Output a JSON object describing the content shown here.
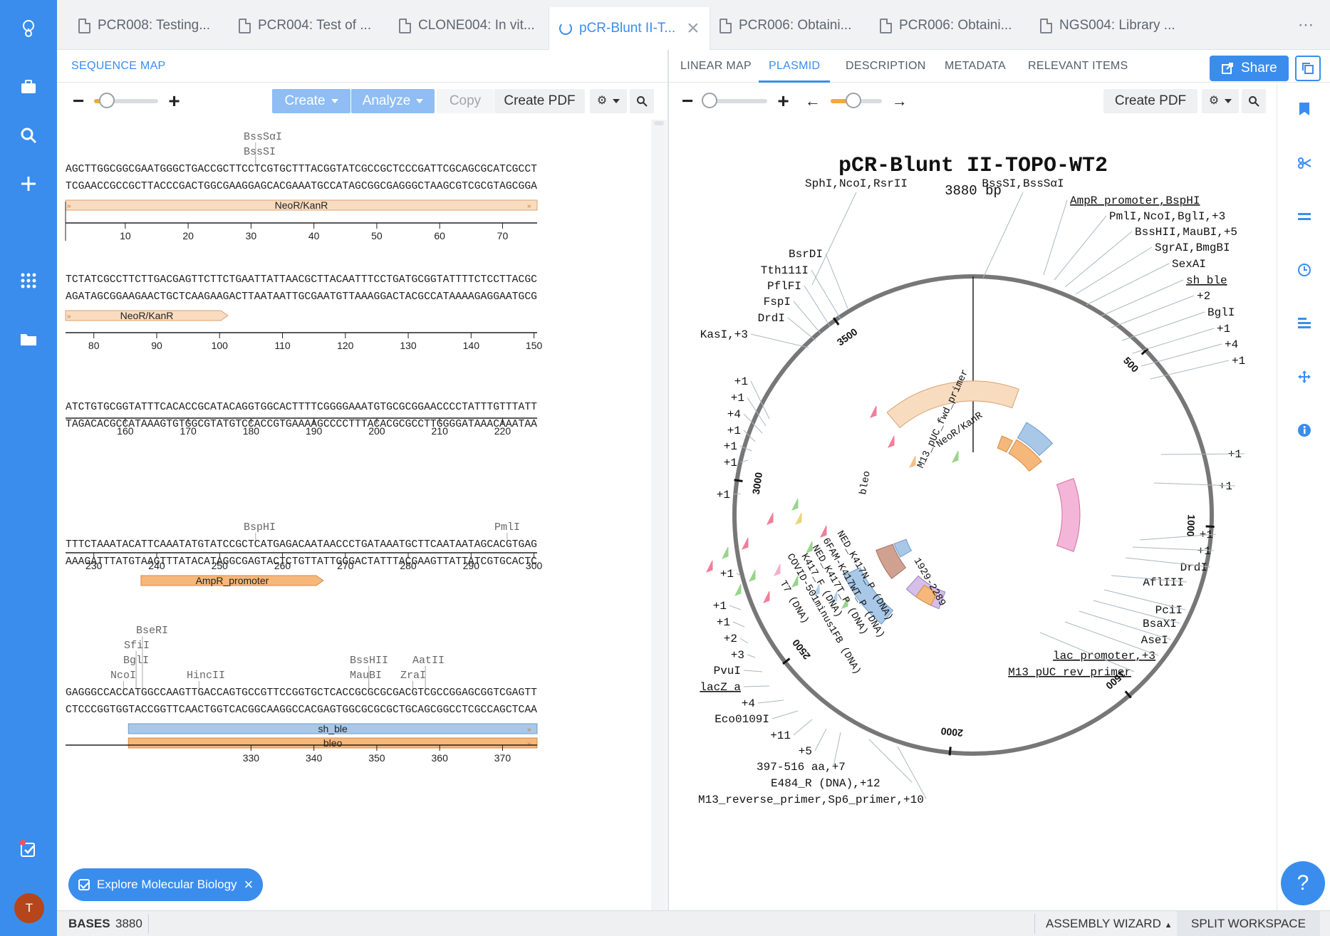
{
  "tabs": [
    {
      "label": "PCR008: Testing...",
      "active": false
    },
    {
      "label": "PCR004: Test of ...",
      "active": false
    },
    {
      "label": "CLONE004: In vit...",
      "active": false
    },
    {
      "label": "pCR-Blunt II-T...",
      "active": true
    },
    {
      "label": "PCR006: Obtaini...",
      "active": false
    },
    {
      "label": "PCR006: Obtaini...",
      "active": false
    },
    {
      "label": "NGS004: Library ...",
      "active": false
    }
  ],
  "left_panel": {
    "tab_label": "SEQUENCE MAP",
    "create_label": "Create",
    "analyze_label": "Analyze",
    "copy_label": "Copy",
    "pdf_label": "Create PDF",
    "zoom_level": 0.2
  },
  "right_panel": {
    "tabs": [
      "LINEAR MAP",
      "PLASMID",
      "DESCRIPTION",
      "METADATA",
      "RELEVANT ITEMS"
    ],
    "active_tab": "PLASMID",
    "share_label": "Share",
    "pdf_label": "Create PDF",
    "zoom_level": 0.1,
    "rotation_level": 0.45
  },
  "sequence_blocks": [
    {
      "enzymes": [
        {
          "name": "BssSαI",
          "row": 2
        },
        {
          "name": "BssSI",
          "row": 1
        }
      ],
      "top": "AGCTTGGCGGCGAATGGGCTGACCGCTTCCTCGTGCTTTACGGTATCGCCGCTCCCGATTCGCAGCGCATCGCCT",
      "bottom": "TCGAACCGCCGCTTACCCGACTGGCGAAGGAGCACGAAATGCCATAGCGGCGAGGGCTAAGCGTCGCGTAGCGGA",
      "features": [
        {
          "label": "NeoR/KanR",
          "color": "#f8dcc0",
          "stroke": "#e0a070",
          "kind": "full"
        }
      ],
      "ticks": [
        "10",
        "20",
        "30",
        "40",
        "50",
        "60",
        "70"
      ]
    },
    {
      "enzymes": [],
      "top": "TCTATCGCCTTCTTGACGAGTTCTTCTGAATTATTAACGCTTACAATTTCCTGATGCGGTATTTTCTCCTTACGC",
      "bottom": "AGATAGCGGAAGAACTGCTCAAGAAGACTTAATAATTGCGAATGTTAAAGGACTACGCCATAAAAGAGGAATGCG",
      "features": [
        {
          "label": "NeoR/KanR",
          "color": "#f8dcc0",
          "stroke": "#e0a070",
          "kind": "end"
        }
      ],
      "ticks": [
        "80",
        "90",
        "100",
        "110",
        "120",
        "130",
        "140",
        "150"
      ]
    },
    {
      "enzymes": [],
      "top": "ATCTGTGCGGTATTTCACACCGCATACAGGTGGCACTTTTCGGGGAAATGTGCGCGGAACCCCTATTTGTTTATT",
      "bottom": "TAGACACGCCATAAAGTGTGGCGTATGTCCACCGTGAAAAGCCCCTTTACACGCGCCTTGGGGATAAACAAATAA",
      "features": [],
      "ticks": [
        "160",
        "170",
        "180",
        "190",
        "200",
        "210",
        "220"
      ]
    },
    {
      "enzymes": [
        {
          "name": "BspHI",
          "row": 1
        },
        {
          "name": "PmlI",
          "row": 1
        }
      ],
      "top": "TTTCTAAATACATTCAAATATGTATCCGCTCATGAGACAATAACCCTGATAAATGCTTCAATAATAGCACGTGAG",
      "bottom": "AAAGATTTATGTAAGTTTATACATAGGCGAGTACTCTGTTATTGGGACTATTTACGAAGTTATTATCGTGCACTC",
      "features": [
        {
          "label": "AmpR_promoter",
          "color": "#f6b77a",
          "stroke": "#d98a40",
          "kind": "mid"
        }
      ],
      "ticks": [
        "230",
        "240",
        "250",
        "260",
        "270",
        "280",
        "290",
        "300"
      ]
    },
    {
      "enzymes": [
        {
          "name": "BseRI",
          "row": 4
        },
        {
          "name": "SfiI",
          "row": 3
        },
        {
          "name": "BglI",
          "row": 2
        },
        {
          "name": "NcoI",
          "row": 1
        },
        {
          "name": "HincII",
          "row": 1
        },
        {
          "name": "BssHII",
          "row": 2
        },
        {
          "name": "MauBI",
          "row": 1
        },
        {
          "name": "AatII",
          "row": 2
        },
        {
          "name": "ZraI",
          "row": 1
        }
      ],
      "top": "GAGGGCCACCATGGCCAAGTTGACCAGTGCCGTTCCGGTGCTCACCGCGCGCGACGTCGCCGGAGCGGTCGAGTT",
      "bottom": "CTCCCGGTGGTACCGGTTCAACTGGTCACGGCAAGGCCACGAGTGGCGCGCGCTGCAGCGGCCTCGCCAGCTCAA",
      "features": [
        {
          "label": "sh_ble",
          "color": "#a9c8e8",
          "stroke": "#6f9cc8",
          "kind": "start"
        },
        {
          "label": "bleo",
          "color": "#f6b77a",
          "stroke": "#d98a40",
          "kind": "start"
        }
      ],
      "ticks": [
        "330",
        "340",
        "350",
        "360",
        "370"
      ]
    }
  ],
  "plasmid": {
    "name": "pCR-Blunt II-TOPO-WT2",
    "length_label": "3880 bp",
    "total_bp": 3880,
    "ring_ticks": [
      "500",
      "1000",
      "1500",
      "2000",
      "2500",
      "3000",
      "3500"
    ],
    "ring_tick_bp": [
      500,
      1000,
      1500,
      2000,
      2500,
      3000,
      3500
    ],
    "feature_labels": [
      "NeoR/KanR",
      "M13_pUC_fwd_primer",
      "bleo",
      "1929-2289",
      "NED_K417N_P (DNA)",
      "6FAM-K417WT_P (DNA)",
      "NED_K417T_P (DNA)",
      "K417_F (DNA)",
      "COVID-501minus1FB (DNA)",
      "T7 (DNA)"
    ],
    "top_labels": [
      "SphI,NcoI,RsrII",
      "BssSI,BssSαI",
      "AmpR_promoter,BspHI",
      "PmlI,NcoI,BglI,+3",
      "BssHII,MauBI,+5",
      "SgrAI,BmgBI",
      "SexAI",
      "sh_ble",
      "+2",
      "BglI",
      "+1",
      "+4",
      "+1"
    ],
    "left_labels": [
      "BsrDI",
      "Tth111I",
      "PflFI",
      "FspI",
      "DrdI",
      "KasI,+3",
      "+1",
      "+1",
      "+4",
      "+1",
      "+1",
      "+1",
      "+1",
      "+1",
      "+1",
      "+1",
      "+2",
      "+3",
      "PvuI",
      "lacZ_a",
      "+4",
      "Eco0109I",
      "+11",
      "+5",
      "397-516 aa,+7",
      "E484_R (DNA),+12",
      "M13_reverse_primer,Sp6_primer,+10"
    ],
    "right_labels": [
      "+1",
      "+1",
      "+1",
      "+1",
      "DrdI",
      "AflIII",
      "PciI",
      "BsaXI",
      "AseI",
      "lac_promoter,+3",
      "M13_pUC_rev_primer"
    ]
  },
  "chip_label": "Explore Molecular Biology",
  "status": {
    "bases_key": "BASES",
    "bases_value": "3880",
    "assembly": "ASSEMBLY WIZARD",
    "split": "SPLIT WORKSPACE"
  },
  "avatar_letter": "T"
}
